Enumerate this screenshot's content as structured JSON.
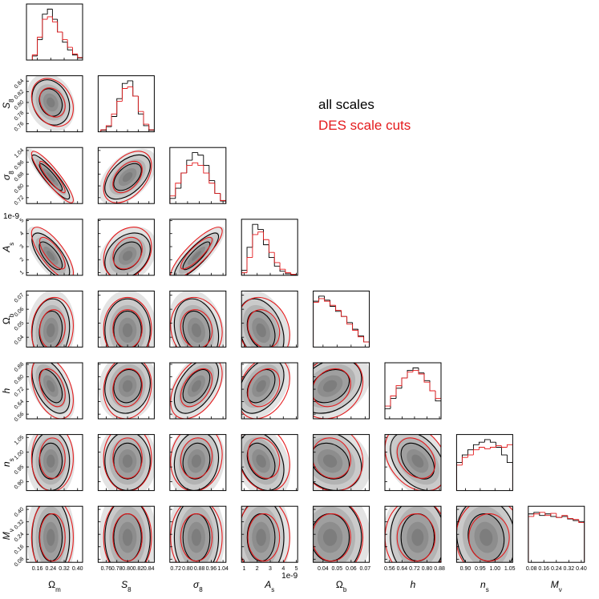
{
  "chart_data": {
    "type": "corner",
    "hist_ylim": [
      0,
      110
    ],
    "params": [
      {
        "symbol": "Ω",
        "sub": "m",
        "italic": false,
        "lim": [
          0.095,
          0.43
        ],
        "ticks": [
          0.16,
          0.24,
          0.32,
          {
            "value": 0.4,
            "label": "0.40"
          }
        ],
        "bins": [
          0.13,
          0.16,
          0.19,
          0.22,
          0.25,
          0.28,
          0.31,
          0.34,
          0.37,
          0.4,
          0.43
        ]
      },
      {
        "symbol": "S",
        "sub": "8",
        "italic": true,
        "lim": [
          0.745,
          0.85
        ],
        "ticks": [
          0.76,
          0.78,
          {
            "value": 0.8,
            "label": "0.80"
          },
          0.82,
          0.84
        ],
        "bins": [
          0.75,
          0.76,
          0.77,
          0.78,
          0.79,
          0.8,
          0.81,
          0.82,
          0.83,
          0.84,
          0.85
        ]
      },
      {
        "symbol": "σ",
        "sub": "8",
        "italic": true,
        "lim": [
          0.68,
          1.06
        ],
        "ticks": [
          0.72,
          {
            "value": 0.8,
            "label": "0.80"
          },
          0.88,
          0.96,
          1.04
        ],
        "bins": [
          0.68,
          0.718,
          0.756,
          0.794,
          0.832,
          0.87,
          0.908,
          0.946,
          0.984,
          1.022,
          1.06
        ]
      },
      {
        "symbol": "A",
        "sub": "s",
        "italic": true,
        "offset": "1e-9",
        "lim": [
          0.8,
          5.1
        ],
        "ticks": [
          1,
          2,
          3,
          4,
          5
        ],
        "bins": [
          0.8,
          1.22,
          1.64,
          2.06,
          2.48,
          2.9,
          3.32,
          3.74,
          4.16,
          4.58,
          5.0
        ]
      },
      {
        "symbol": "Ω",
        "sub": "b",
        "italic": false,
        "lim": [
          0.033,
          0.073
        ],
        "ticks": [
          0.04,
          0.05,
          0.06,
          0.07
        ],
        "bins": [
          0.033,
          0.037,
          0.041,
          0.045,
          0.049,
          0.053,
          0.057,
          0.061,
          0.065,
          0.069,
          0.073
        ]
      },
      {
        "symbol": "h",
        "italic": true,
        "lim": [
          0.53,
          0.89
        ],
        "ticks": [
          0.56,
          0.64,
          0.72,
          {
            "value": 0.8,
            "label": "0.80"
          },
          0.88
        ],
        "bins": [
          0.53,
          0.566,
          0.602,
          0.638,
          0.674,
          0.71,
          0.746,
          0.782,
          0.818,
          0.854,
          0.89
        ]
      },
      {
        "symbol": "n",
        "sub": "s",
        "italic": true,
        "lim": [
          0.87,
          1.06
        ],
        "ticks": [
          {
            "value": 0.9,
            "label": "0.90"
          },
          0.95,
          {
            "value": 1.0,
            "label": "1.00"
          },
          1.05
        ],
        "bins": [
          0.87,
          0.889,
          0.908,
          0.927,
          0.946,
          0.965,
          0.984,
          1.003,
          1.022,
          1.041,
          1.06
        ]
      },
      {
        "symbol": "M",
        "sub": "ν",
        "italic": true,
        "lim": [
          0.06,
          0.42
        ],
        "ticks": [
          0.08,
          0.16,
          0.24,
          0.32,
          {
            "value": 0.4,
            "label": "0.40"
          }
        ],
        "bins": [
          0.06,
          0.096,
          0.132,
          0.168,
          0.204,
          0.24,
          0.276,
          0.312,
          0.348,
          0.384,
          0.42
        ]
      }
    ],
    "series": [
      {
        "name": "all scales",
        "color": "#000000",
        "mean": [
          0.24,
          0.8,
          0.86,
          2.3,
          0.045,
          0.74,
          0.97,
          0.22
        ],
        "sd": [
          0.045,
          0.017,
          0.06,
          0.7,
          0.009,
          0.07,
          0.04,
          0.1
        ],
        "corr": [
          [],
          [
            -0.2
          ],
          [
            -0.9,
            0.5
          ],
          [
            -0.7,
            0.3,
            0.85
          ],
          [
            0.1,
            0,
            -0.2,
            -0.3
          ],
          [
            -0.5,
            0.1,
            0.5,
            0.4,
            0.3
          ],
          [
            0,
            0,
            0.1,
            -0.3,
            -0.2,
            -0.4
          ],
          [
            0,
            0,
            0,
            0,
            0,
            0,
            -0.1
          ]
        ],
        "counts": [
          [
            8,
            40,
            90,
            100,
            80,
            55,
            35,
            20,
            10,
            4
          ],
          [
            3,
            10,
            30,
            65,
            95,
            100,
            70,
            35,
            12,
            3
          ],
          [
            10,
            30,
            60,
            85,
            100,
            95,
            75,
            45,
            20,
            5
          ],
          [
            10,
            55,
            100,
            90,
            60,
            35,
            18,
            8,
            3,
            1
          ],
          [
            90,
            100,
            92,
            80,
            70,
            60,
            48,
            35,
            22,
            10
          ],
          [
            20,
            40,
            60,
            80,
            95,
            100,
            90,
            75,
            55,
            35
          ],
          [
            55,
            70,
            80,
            90,
            95,
            100,
            95,
            85,
            70,
            55
          ],
          [
            95,
            98,
            92,
            95,
            90,
            88,
            90,
            85,
            82,
            80
          ]
        ]
      },
      {
        "name": "DES scale cuts",
        "color": "#e41a1c",
        "mean": [
          0.25,
          0.8,
          0.86,
          2.5,
          0.046,
          0.73,
          0.98,
          0.22
        ],
        "sd": [
          0.05,
          0.018,
          0.07,
          0.8,
          0.009,
          0.08,
          0.045,
          0.1
        ],
        "corr": [
          [],
          [
            -0.25
          ],
          [
            -0.9,
            0.45
          ],
          [
            -0.75,
            0.25,
            0.85
          ],
          [
            0.1,
            0,
            -0.1,
            -0.2
          ],
          [
            -0.4,
            0.1,
            0.45,
            0.3,
            0.2
          ],
          [
            0,
            0,
            0.1,
            -0.2,
            -0.1,
            -0.3
          ],
          [
            0,
            0,
            0,
            0,
            0,
            0,
            0
          ]
        ],
        "counts": [
          [
            10,
            45,
            80,
            85,
            75,
            55,
            40,
            25,
            12,
            5
          ],
          [
            4,
            12,
            35,
            60,
            85,
            88,
            70,
            40,
            15,
            4
          ],
          [
            15,
            40,
            60,
            75,
            80,
            75,
            60,
            40,
            20,
            6
          ],
          [
            5,
            35,
            80,
            85,
            70,
            45,
            25,
            12,
            5,
            2
          ],
          [
            88,
            95,
            90,
            82,
            72,
            60,
            45,
            33,
            20,
            10
          ],
          [
            25,
            45,
            65,
            80,
            92,
            95,
            88,
            72,
            55,
            40
          ],
          [
            50,
            65,
            70,
            80,
            85,
            82,
            85,
            88,
            85,
            90
          ],
          [
            90,
            95,
            98,
            92,
            96,
            88,
            92,
            86,
            84,
            78
          ]
        ]
      }
    ]
  }
}
